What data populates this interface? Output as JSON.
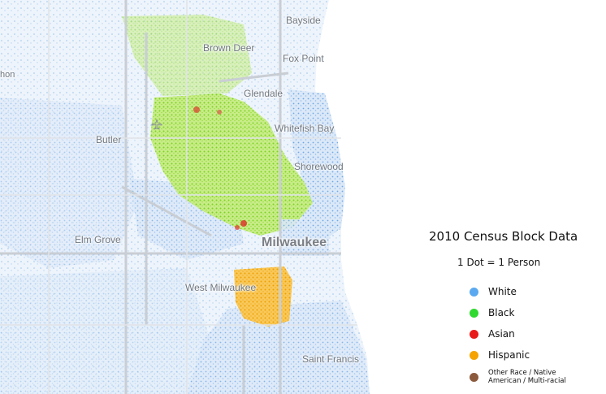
{
  "map": {
    "labels": {
      "bayside": "Bayside",
      "brown_deer": "Brown Deer",
      "fox_point": "Fox Point",
      "glendale": "Glendale",
      "whitefish_bay": "Whitefish Bay",
      "butler": "Butler",
      "shorewood": "Shorewood",
      "elm_grove": "Elm Grove",
      "milwaukee": "Milwaukee",
      "west_milwaukee": "West Milwaukee",
      "saint_francis": "Saint Francis",
      "left_edge_fragment": "hon"
    },
    "colors": {
      "white": "#6fa8e8",
      "black": "#7ed321",
      "asian": "#e02020",
      "hispanic": "#f5a300",
      "other": "#8b5a3c",
      "roads": "#d7dbe0",
      "lake": "#ffffff"
    }
  },
  "legend": {
    "title": "2010 Census Block Data",
    "subtitle": "1 Dot = 1 Person",
    "items": [
      {
        "label": "White",
        "color": "#5aa9f0"
      },
      {
        "label": "Black",
        "color": "#2fd92f"
      },
      {
        "label": "Asian",
        "color": "#e81a1a"
      },
      {
        "label": "Hispanic",
        "color": "#f4a300"
      },
      {
        "label": "Other Race / Native American / Multi-racial",
        "color": "#8b5a3c"
      }
    ]
  }
}
